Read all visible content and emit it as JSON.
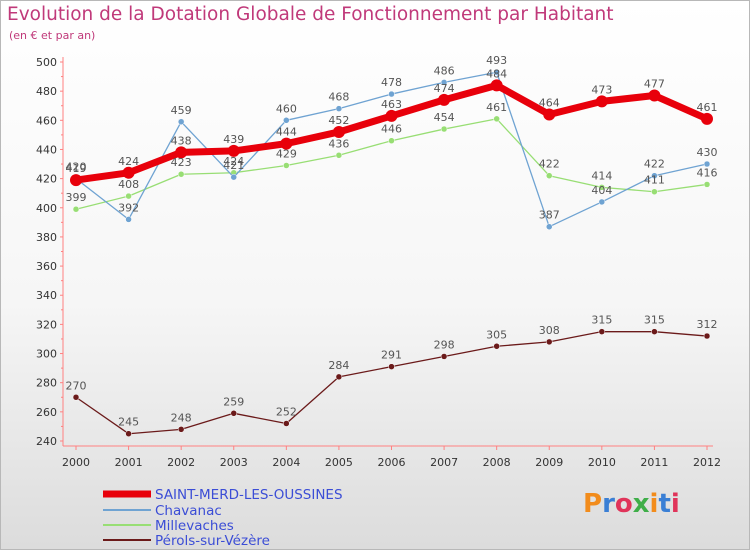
{
  "title": "Evolution de la Dotation Globale de Fonctionnement par Habitant",
  "subtitle": "(en € et par an)",
  "logo": {
    "text": "Proxiti",
    "colors": [
      "#f28c1c",
      "#3a7fd5",
      "#e0345a",
      "#3fae49",
      "#f28c1c",
      "#3a7fd5",
      "#e0345a"
    ]
  },
  "chart_data": {
    "type": "line",
    "x": [
      "2000",
      "2001",
      "2002",
      "2003",
      "2004",
      "2005",
      "2006",
      "2007",
      "2008",
      "2009",
      "2010",
      "2011",
      "2012"
    ],
    "ylim": [
      240,
      500
    ],
    "yticks": [
      240,
      260,
      280,
      300,
      320,
      340,
      360,
      380,
      400,
      420,
      440,
      460,
      480,
      500
    ],
    "grid": false,
    "legend_position": "bottom-left",
    "series": [
      {
        "name": "SAINT-MERD-LES-OUSSINES",
        "color": "#e8000b",
        "values": [
          419,
          424,
          438,
          439,
          444,
          452,
          463,
          474,
          484,
          464,
          473,
          477,
          461
        ]
      },
      {
        "name": "Chavanac",
        "color": "#6fa3d2",
        "values": [
          420,
          392,
          459,
          421,
          460,
          468,
          478,
          486,
          493,
          387,
          404,
          422,
          430
        ]
      },
      {
        "name": "Millevaches",
        "color": "#98de74",
        "values": [
          399,
          408,
          423,
          424,
          429,
          436,
          446,
          454,
          461,
          422,
          414,
          411,
          416
        ]
      },
      {
        "name": "Pérols-sur-Vézère",
        "color": "#6b1a1a",
        "values": [
          270,
          245,
          248,
          259,
          252,
          284,
          291,
          298,
          305,
          308,
          315,
          315,
          312
        ]
      }
    ]
  }
}
